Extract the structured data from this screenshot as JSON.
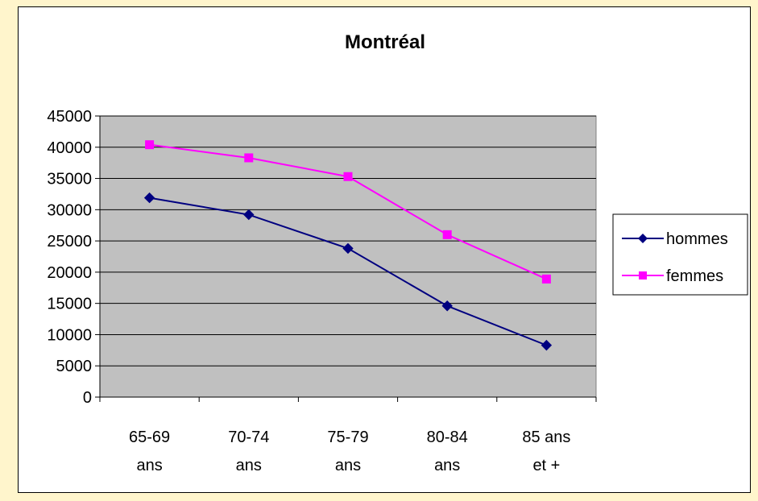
{
  "chart_data": {
    "type": "line",
    "title": "Montréal",
    "xlabel": "",
    "ylabel": "",
    "categories": [
      [
        "65-69",
        "ans"
      ],
      [
        "70-74",
        "ans"
      ],
      [
        "75-79",
        "ans"
      ],
      [
        "80-84",
        "ans"
      ],
      [
        "85 ans",
        "et +"
      ]
    ],
    "y_ticks": [
      "0",
      "5000",
      "10000",
      "15000",
      "20000",
      "25000",
      "30000",
      "35000",
      "40000",
      "45000"
    ],
    "ylim": [
      0,
      45000
    ],
    "y_step": 5000,
    "grid": true,
    "legend_position": "right",
    "plot_background": "#c0c0c0",
    "series": [
      {
        "name": "hommes",
        "color": "#000080",
        "marker": "diamond",
        "values": [
          31900,
          29200,
          23800,
          14600,
          8300
        ]
      },
      {
        "name": "femmes",
        "color": "#ff00ff",
        "marker": "square",
        "values": [
          40400,
          38300,
          35300,
          26000,
          18900
        ]
      }
    ]
  }
}
